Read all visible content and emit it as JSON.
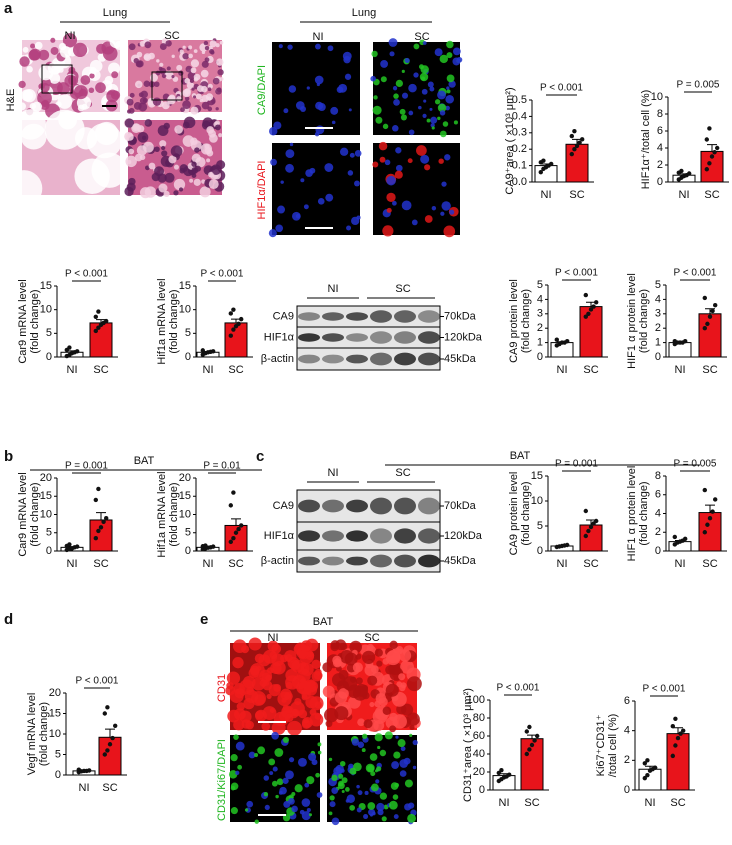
{
  "figure": {
    "panels": [
      "a",
      "b",
      "c",
      "d",
      "e"
    ],
    "lung_he": {
      "title": "Lung",
      "groups": [
        "NI",
        "SC"
      ],
      "stain": "H&E"
    },
    "lung_if": {
      "title": "Lung",
      "groups": [
        "NI",
        "SC"
      ],
      "stains": [
        "CA9/DAPI",
        "HIF1α/DAPI"
      ]
    },
    "lung_blot": {
      "groups": [
        "NI",
        "SC"
      ],
      "proteins": [
        "CA9",
        "HIF1α",
        "β-actin"
      ],
      "sizes": [
        "70kDa",
        "120kDa",
        "45kDa"
      ]
    },
    "bat_b": {
      "title": "BAT"
    },
    "bat_blot": {
      "title": "BAT",
      "groups": [
        "NI",
        "SC"
      ],
      "proteins": [
        "CA9",
        "HIF1α",
        "β-actin"
      ],
      "sizes": [
        "70kDa",
        "120kDa",
        "45kDa"
      ]
    },
    "bat_e": {
      "title": "BAT",
      "groups": [
        "NI",
        "SC"
      ],
      "stains": [
        "CD31",
        "CD31/Ki67/DAPI"
      ]
    }
  },
  "chart_data": [
    {
      "type": "bar",
      "ylabel": [
        "CA9⁺area ( ×10³ μm²)"
      ],
      "p_label": "P < 0.001",
      "categories": [
        "NI",
        "SC"
      ],
      "colors": [
        "#ffffff",
        "#e8141b"
      ],
      "values": [
        0.1,
        0.23
      ],
      "errors": [
        0.01,
        0.03
      ],
      "points": [
        [
          0.06,
          0.08,
          0.09,
          0.1,
          0.11,
          0.12,
          0.13
        ],
        [
          0.17,
          0.2,
          0.22,
          0.24,
          0.26,
          0.28,
          0.31
        ]
      ],
      "ylim": [
        0,
        0.5
      ],
      "yticks": [
        {
          "value": 0,
          "label": "0.0"
        },
        {
          "value": 0.1,
          "label": "0.1"
        },
        {
          "value": 0.2,
          "label": "0.2"
        },
        {
          "value": 0.3,
          "label": "0.3"
        },
        {
          "value": 0.4,
          "label": "0.4"
        },
        {
          "value": 0.5,
          "label": "0.5"
        }
      ]
    },
    {
      "type": "bar",
      "ylabel": [
        "HIF1α⁺/total cell (%)"
      ],
      "p_label": "P = 0.005",
      "categories": [
        "NI",
        "SC"
      ],
      "colors": [
        "#ffffff",
        "#e8141b"
      ],
      "values": [
        0.8,
        3.6
      ],
      "errors": [
        0.15,
        0.8
      ],
      "points": [
        [
          0.3,
          0.5,
          0.7,
          0.8,
          1.0,
          1.1,
          1.3
        ],
        [
          1.5,
          2.2,
          3.0,
          3.5,
          4.0,
          5.0,
          6.3
        ]
      ],
      "ylim": [
        0,
        10
      ],
      "yticks": [
        0,
        2,
        4,
        6,
        8,
        10
      ]
    },
    {
      "type": "bar",
      "ylabel": [
        "Car9 mRNA level",
        "(fold change)"
      ],
      "p_label": "P < 0.001",
      "categories": [
        "NI",
        "SC"
      ],
      "colors": [
        "#ffffff",
        "#e8141b"
      ],
      "values": [
        1.0,
        7.2
      ],
      "errors": [
        0.3,
        0.7
      ],
      "points": [
        [
          0.2,
          0.4,
          0.8,
          1.0,
          1.2,
          1.5,
          2.0
        ],
        [
          5.5,
          6.2,
          6.8,
          7.2,
          7.6,
          8.5,
          9.6
        ]
      ],
      "ylim": [
        0,
        15
      ],
      "yticks": [
        0,
        5,
        10,
        15
      ]
    },
    {
      "type": "bar",
      "ylabel": [
        "Hif1a mRNA level",
        "(fold change)"
      ],
      "p_label": "P < 0.001",
      "categories": [
        "NI",
        "SC"
      ],
      "colors": [
        "#ffffff",
        "#e8141b"
      ],
      "values": [
        1.0,
        7.2
      ],
      "errors": [
        0.15,
        0.8
      ],
      "points": [
        [
          0.5,
          0.8,
          1.0,
          1.1,
          1.2,
          1.4
        ],
        [
          4.5,
          5.8,
          6.5,
          7.0,
          8.0,
          9.2,
          10.0
        ]
      ],
      "ylim": [
        0,
        15
      ],
      "yticks": [
        0,
        5,
        10,
        15
      ]
    },
    {
      "type": "bar",
      "ylabel": [
        "CA9 protein level",
        "(fold change)"
      ],
      "p_label": "P < 0.001",
      "categories": [
        "NI",
        "SC"
      ],
      "colors": [
        "#ffffff",
        "#e8141b"
      ],
      "values": [
        1.0,
        3.5
      ],
      "errors": [
        0.06,
        0.3
      ],
      "points": [
        [
          0.8,
          0.9,
          1.0,
          1.0,
          1.1,
          1.2
        ],
        [
          2.8,
          3.0,
          3.3,
          3.5,
          3.8,
          4.3
        ]
      ],
      "ylim": [
        0,
        5
      ],
      "yticks": [
        0,
        1,
        2,
        3,
        4,
        5
      ]
    },
    {
      "type": "bar",
      "ylabel": [
        "HIF1 α protein level",
        "(fold change)"
      ],
      "p_label": "P < 0.001",
      "categories": [
        "NI",
        "SC"
      ],
      "colors": [
        "#ffffff",
        "#e8141b"
      ],
      "values": [
        1.0,
        3.0
      ],
      "errors": [
        0.04,
        0.35
      ],
      "points": [
        [
          0.9,
          1.0,
          1.0,
          1.0,
          1.1,
          1.1
        ],
        [
          2.0,
          2.3,
          2.8,
          3.2,
          3.6,
          4.1
        ]
      ],
      "ylim": [
        0,
        5
      ],
      "yticks": [
        0,
        1,
        2,
        3,
        4,
        5
      ]
    },
    {
      "type": "bar",
      "ylabel": [
        "Car9 mRNA level",
        "(fold change)"
      ],
      "p_label": "P = 0.001",
      "categories": [
        "NI",
        "SC"
      ],
      "colors": [
        "#ffffff",
        "#e8141b"
      ],
      "values": [
        1.0,
        8.5
      ],
      "errors": [
        0.2,
        2.0
      ],
      "points": [
        [
          0.3,
          0.5,
          0.7,
          1.0,
          1.2,
          1.4,
          1.8
        ],
        [
          3.5,
          5.5,
          6.5,
          8.0,
          9.0,
          14.0,
          17.0
        ]
      ],
      "ylim": [
        0,
        20
      ],
      "yticks": [
        0,
        5,
        10,
        15,
        20
      ]
    },
    {
      "type": "bar",
      "ylabel": [
        "Hif1a mRNA level",
        "(fold change)"
      ],
      "p_label": "P = 0.01",
      "categories": [
        "NI",
        "SC"
      ],
      "colors": [
        "#ffffff",
        "#e8141b"
      ],
      "values": [
        1.0,
        7.0
      ],
      "errors": [
        0.15,
        1.8
      ],
      "points": [
        [
          0.5,
          0.7,
          0.9,
          1.0,
          1.2,
          1.3,
          1.5
        ],
        [
          2.5,
          3.5,
          5.0,
          6.0,
          7.0,
          12.5,
          16.0
        ]
      ],
      "ylim": [
        0,
        20
      ],
      "yticks": [
        0,
        5,
        10,
        15,
        20
      ]
    },
    {
      "type": "bar",
      "ylabel": [
        "CA9 protein level",
        "(fold change)"
      ],
      "p_label": "P = 0.001",
      "categories": [
        "NI",
        "SC"
      ],
      "colors": [
        "#ffffff",
        "#e8141b"
      ],
      "values": [
        1.0,
        5.2
      ],
      "errors": [
        0.1,
        1.0
      ],
      "points": [
        [
          0.8,
          0.9,
          1.0,
          1.1,
          1.2
        ],
        [
          3.0,
          4.0,
          4.8,
          5.5,
          6.0,
          8.0
        ]
      ],
      "ylim": [
        0,
        15
      ],
      "yticks": [
        0,
        5,
        10,
        15
      ]
    },
    {
      "type": "bar",
      "ylabel": [
        "HIF1 α protein level",
        "(fold change)"
      ],
      "p_label": "P = 0.005",
      "categories": [
        "NI",
        "SC"
      ],
      "colors": [
        "#ffffff",
        "#e8141b"
      ],
      "values": [
        1.0,
        4.1
      ],
      "errors": [
        0.12,
        0.8
      ],
      "points": [
        [
          0.7,
          0.9,
          1.0,
          1.1,
          1.3,
          1.5
        ],
        [
          2.0,
          2.8,
          3.5,
          4.2,
          5.5,
          6.5
        ]
      ],
      "ylim": [
        0,
        8
      ],
      "yticks": [
        0,
        2,
        4,
        6,
        8
      ]
    },
    {
      "type": "bar",
      "ylabel": [
        "Vegf mRNA level",
        "(fold change)"
      ],
      "p_label": "P < 0.001",
      "categories": [
        "NI",
        "SC"
      ],
      "colors": [
        "#ffffff",
        "#e8141b"
      ],
      "values": [
        1.0,
        9.2
      ],
      "errors": [
        0.08,
        2.0
      ],
      "points": [
        [
          0.7,
          0.9,
          1.0,
          1.0,
          1.1,
          1.3
        ],
        [
          5.0,
          6.0,
          7.5,
          9.0,
          12.0,
          15.0,
          16.5
        ]
      ],
      "ylim": [
        0,
        20
      ],
      "yticks": [
        0,
        5,
        10,
        15,
        20
      ]
    },
    {
      "type": "bar",
      "ylabel": [
        "CD31⁺area ( ×10³ μm²)"
      ],
      "p_label": "P < 0.001",
      "categories": [
        "NI",
        "SC"
      ],
      "colors": [
        "#ffffff",
        "#e8141b"
      ],
      "values": [
        16,
        57
      ],
      "errors": [
        2,
        4
      ],
      "points": [
        [
          10,
          12,
          14,
          15,
          17,
          19,
          22
        ],
        [
          40,
          45,
          50,
          55,
          60,
          65,
          70
        ]
      ],
      "ylim": [
        0,
        100
      ],
      "yticks": [
        0,
        20,
        40,
        60,
        80,
        100
      ]
    },
    {
      "type": "bar",
      "ylabel": [
        "Ki67⁺CD31⁺",
        "/total cell (%)"
      ],
      "p_label": "P < 0.001",
      "categories": [
        "NI",
        "SC"
      ],
      "colors": [
        "#ffffff",
        "#e8141b"
      ],
      "values": [
        1.4,
        3.8
      ],
      "errors": [
        0.2,
        0.4
      ],
      "points": [
        [
          0.8,
          1.0,
          1.3,
          1.4,
          1.5,
          1.8,
          2.0
        ],
        [
          2.3,
          3.0,
          3.5,
          3.8,
          4.0,
          4.3,
          4.8
        ]
      ],
      "ylim": [
        0,
        6
      ],
      "yticks": [
        0,
        2,
        4,
        6
      ]
    }
  ]
}
